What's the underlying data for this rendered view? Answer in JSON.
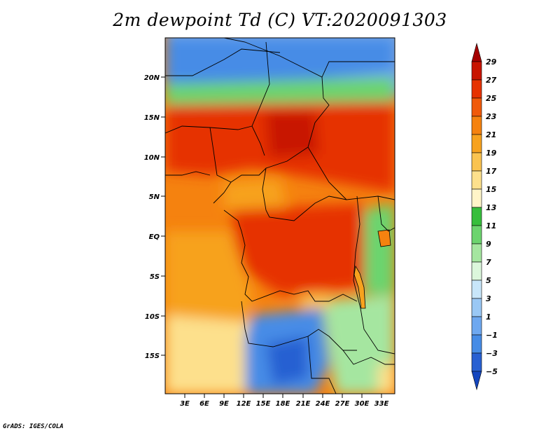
{
  "title": "2m dewpoint Td (C) VT:2020091303",
  "credit": "GrADS: IGES/COLA",
  "lat_labels": [
    "20N",
    "15N",
    "10N",
    "5N",
    "EQ",
    "5S",
    "10S",
    "15S"
  ],
  "lon_labels": [
    "3E",
    "6E",
    "9E",
    "12E",
    "15E",
    "18E",
    "21E",
    "24E",
    "27E",
    "30E",
    "33E"
  ],
  "colorbar": {
    "labels": [
      "29",
      "27",
      "25",
      "23",
      "21",
      "19",
      "17",
      "15",
      "13",
      "11",
      "9",
      "7",
      "5",
      "3",
      "1",
      "−1",
      "−3",
      "−5"
    ],
    "colors": [
      "#a50000",
      "#c81400",
      "#e63200",
      "#f05a0a",
      "#f5820f",
      "#f7a21e",
      "#fac350",
      "#fde08c",
      "#fff5c8",
      "#37be3c",
      "#6cd46e",
      "#a5e6a0",
      "#dcf7dc",
      "#c8e6fa",
      "#9ac8f5",
      "#6ea8f0",
      "#468ce6",
      "#2860d2",
      "#1446be"
    ]
  },
  "colors": {
    "land_orange": "#f5820f",
    "deep_orange": "#e63200",
    "water_blue": "#468ce6"
  }
}
